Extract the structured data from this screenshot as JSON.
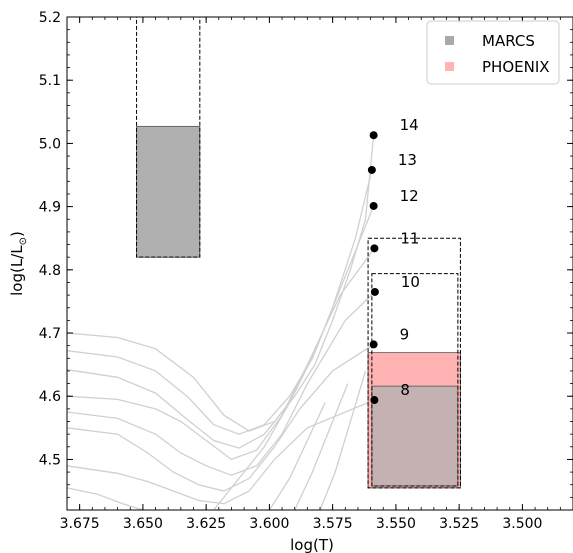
{
  "chart_data": {
    "type": "scatter",
    "xlabel": "log(T)",
    "ylabel": "log(L/L",
    "ylabel_sub": "⊙",
    "ylabel_close": ")",
    "xlim": [
      3.68,
      3.48
    ],
    "ylim": [
      4.42,
      5.2
    ],
    "x_ticks": [
      3.675,
      3.65,
      3.625,
      3.6,
      3.575,
      3.55,
      3.525,
      3.5
    ],
    "x_tick_labels": [
      "3.675",
      "3.650",
      "3.625",
      "3.600",
      "3.575",
      "3.550",
      "3.525",
      "3.500"
    ],
    "y_ticks": [
      4.5,
      4.6,
      4.7,
      4.8,
      4.9,
      5.0,
      5.1,
      5.2
    ],
    "y_tick_labels": [
      "4.5",
      "4.6",
      "4.7",
      "4.8",
      "4.9",
      "5.0",
      "5.1",
      "5.2"
    ],
    "grid": false,
    "legend_position": "top-right",
    "legend": [
      {
        "name": "MARCS",
        "color": "#a9a9a9"
      },
      {
        "name": "PHOENIX",
        "color": "#ffb3b3"
      }
    ],
    "points": [
      {
        "label": "14",
        "x": 3.5588,
        "y": 5.013
      },
      {
        "label": "13",
        "x": 3.5595,
        "y": 4.958
      },
      {
        "label": "12",
        "x": 3.5588,
        "y": 4.901
      },
      {
        "label": "11",
        "x": 3.5585,
        "y": 4.834
      },
      {
        "label": "10",
        "x": 3.5583,
        "y": 4.765
      },
      {
        "label": "9",
        "x": 3.5588,
        "y": 4.682
      },
      {
        "label": "8",
        "x": 3.5585,
        "y": 4.594
      }
    ],
    "boxes": [
      {
        "name": "MARCS",
        "x": [
          3.6525,
          3.6275
        ],
        "filled_y": [
          4.82,
          5.027
        ],
        "dashed_y": [
          4.82,
          5.2
        ],
        "fill": "#b0b0b0"
      },
      {
        "name": "PHOENIX",
        "x": [
          3.561,
          3.5245
        ],
        "filled_y": [
          4.455,
          4.669
        ],
        "dashed_y": [
          4.455,
          4.85
        ],
        "fill": "#ffb3b3"
      },
      {
        "name": "MARCS",
        "x": [
          3.5595,
          3.5255
        ],
        "filled_y": [
          4.458,
          4.616
        ],
        "dashed_y": [
          4.458,
          4.794
        ],
        "fill": "#b0b0b0"
      }
    ],
    "tracks": [
      [
        [
          3.68,
          4.7
        ],
        [
          3.66,
          4.693
        ],
        [
          3.645,
          4.675
        ],
        [
          3.63,
          4.63
        ],
        [
          3.618,
          4.57
        ],
        [
          3.608,
          4.545
        ],
        [
          3.598,
          4.56
        ],
        [
          3.59,
          4.6
        ],
        [
          3.582,
          4.65
        ],
        [
          3.575,
          4.72
        ],
        [
          3.568,
          4.8
        ],
        [
          3.562,
          4.88
        ],
        [
          3.5588,
          5.013
        ]
      ],
      [
        [
          3.68,
          4.672
        ],
        [
          3.66,
          4.662
        ],
        [
          3.645,
          4.64
        ],
        [
          3.632,
          4.598
        ],
        [
          3.622,
          4.555
        ],
        [
          3.612,
          4.54
        ],
        [
          3.602,
          4.555
        ],
        [
          3.592,
          4.6
        ],
        [
          3.583,
          4.66
        ],
        [
          3.575,
          4.74
        ],
        [
          3.566,
          4.85
        ],
        [
          3.5595,
          4.958
        ]
      ],
      [
        [
          3.68,
          4.642
        ],
        [
          3.66,
          4.63
        ],
        [
          3.645,
          4.605
        ],
        [
          3.633,
          4.565
        ],
        [
          3.622,
          4.53
        ],
        [
          3.612,
          4.518
        ],
        [
          3.602,
          4.54
        ],
        [
          3.592,
          4.59
        ],
        [
          3.582,
          4.67
        ],
        [
          3.572,
          4.77
        ],
        [
          3.5588,
          4.901
        ]
      ],
      [
        [
          3.68,
          4.6
        ],
        [
          3.66,
          4.595
        ],
        [
          3.645,
          4.58
        ],
        [
          3.635,
          4.56
        ],
        [
          3.625,
          4.53
        ],
        [
          3.615,
          4.5
        ],
        [
          3.605,
          4.515
        ],
        [
          3.595,
          4.57
        ],
        [
          3.585,
          4.65
        ],
        [
          3.572,
          4.76
        ],
        [
          3.5585,
          4.834
        ]
      ],
      [
        [
          3.68,
          4.575
        ],
        [
          3.66,
          4.565
        ],
        [
          3.645,
          4.54
        ],
        [
          3.635,
          4.51
        ],
        [
          3.625,
          4.49
        ],
        [
          3.615,
          4.475
        ],
        [
          3.605,
          4.49
        ],
        [
          3.595,
          4.54
        ],
        [
          3.585,
          4.62
        ],
        [
          3.57,
          4.72
        ],
        [
          3.5583,
          4.765
        ]
      ],
      [
        [
          3.68,
          4.55
        ],
        [
          3.66,
          4.54
        ],
        [
          3.648,
          4.51
        ],
        [
          3.638,
          4.48
        ],
        [
          3.628,
          4.46
        ],
        [
          3.618,
          4.45
        ],
        [
          3.608,
          4.47
        ],
        [
          3.598,
          4.52
        ],
        [
          3.588,
          4.58
        ],
        [
          3.575,
          4.64
        ],
        [
          3.5588,
          4.682
        ]
      ],
      [
        [
          3.68,
          4.49
        ],
        [
          3.66,
          4.478
        ],
        [
          3.648,
          4.465
        ],
        [
          3.638,
          4.45
        ],
        [
          3.628,
          4.435
        ],
        [
          3.618,
          4.43
        ],
        [
          3.608,
          4.45
        ],
        [
          3.598,
          4.5
        ],
        [
          3.585,
          4.55
        ],
        [
          3.5585,
          4.594
        ]
      ],
      [
        [
          3.68,
          4.455
        ],
        [
          3.668,
          4.445
        ],
        [
          3.658,
          4.43
        ],
        [
          3.65,
          4.42
        ]
      ],
      [
        [
          3.622,
          4.42
        ],
        [
          3.612,
          4.47
        ],
        [
          3.602,
          4.52
        ],
        [
          3.592,
          4.59
        ]
      ],
      [
        [
          3.6,
          4.42
        ],
        [
          3.592,
          4.47
        ],
        [
          3.585,
          4.53
        ],
        [
          3.578,
          4.59
        ]
      ],
      [
        [
          3.59,
          4.42
        ],
        [
          3.583,
          4.48
        ],
        [
          3.576,
          4.55
        ],
        [
          3.569,
          4.62
        ]
      ],
      [
        [
          3.58,
          4.42
        ],
        [
          3.574,
          4.48
        ],
        [
          3.568,
          4.56
        ],
        [
          3.562,
          4.64
        ]
      ]
    ]
  }
}
